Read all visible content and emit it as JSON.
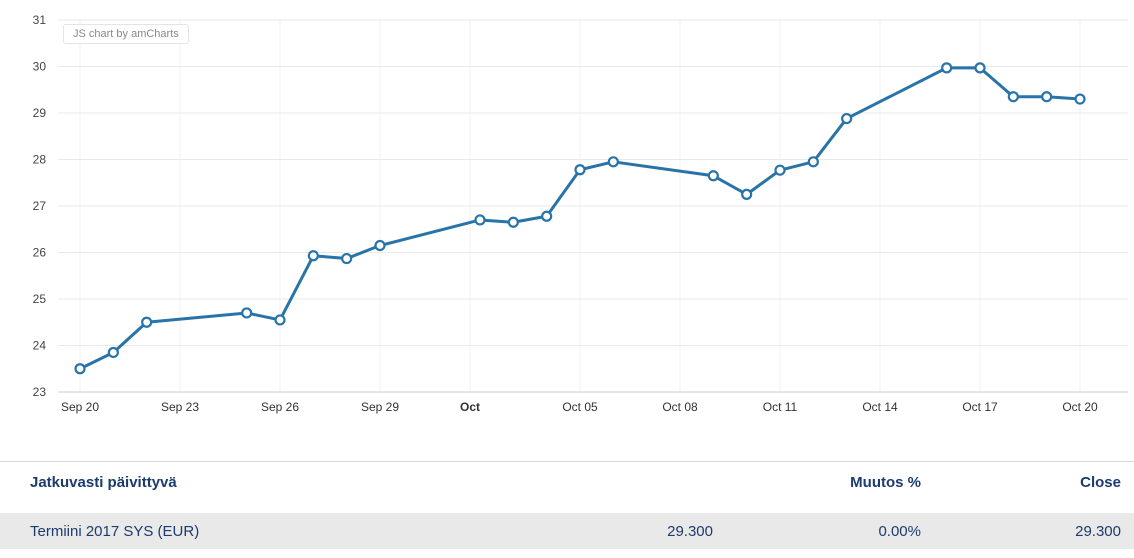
{
  "chart_data": {
    "type": "line",
    "watermark": "JS chart by amCharts",
    "title": "",
    "xlabel": "",
    "ylabel": "",
    "ylim": [
      23,
      31
    ],
    "y_ticks": [
      23,
      24,
      25,
      26,
      27,
      28,
      29,
      30,
      31
    ],
    "x_max_day": 30,
    "x_ticks": [
      {
        "label": "Sep 20",
        "day": 0,
        "bold": false
      },
      {
        "label": "Sep 23",
        "day": 3,
        "bold": false
      },
      {
        "label": "Sep 26",
        "day": 6,
        "bold": false
      },
      {
        "label": "Sep 29",
        "day": 9,
        "bold": false
      },
      {
        "label": "Oct",
        "day": 11.7,
        "bold": true
      },
      {
        "label": "Oct 05",
        "day": 15,
        "bold": false
      },
      {
        "label": "Oct 08",
        "day": 18,
        "bold": false
      },
      {
        "label": "Oct 11",
        "day": 21,
        "bold": false
      },
      {
        "label": "Oct 14",
        "day": 24,
        "bold": false
      },
      {
        "label": "Oct 17",
        "day": 27,
        "bold": false
      },
      {
        "label": "Oct 20",
        "day": 30,
        "bold": false
      }
    ],
    "series": [
      {
        "name": "Termiini 2017 SYS (EUR)",
        "points": [
          {
            "date": "Sep 20",
            "day": 0,
            "value": 23.5
          },
          {
            "date": "Sep 21",
            "day": 1,
            "value": 23.85
          },
          {
            "date": "Sep 22",
            "day": 2,
            "value": 24.5
          },
          {
            "date": "Sep 25",
            "day": 5,
            "value": 24.7
          },
          {
            "date": "Sep 26",
            "day": 6,
            "value": 24.55
          },
          {
            "date": "Sep 27",
            "day": 7,
            "value": 25.93
          },
          {
            "date": "Sep 28",
            "day": 8,
            "value": 25.87
          },
          {
            "date": "Sep 29",
            "day": 9,
            "value": 26.15
          },
          {
            "date": "Oct 02",
            "day": 12,
            "value": 26.7
          },
          {
            "date": "Oct 03",
            "day": 13,
            "value": 26.65
          },
          {
            "date": "Oct 04",
            "day": 14,
            "value": 26.78
          },
          {
            "date": "Oct 05",
            "day": 15,
            "value": 27.78
          },
          {
            "date": "Oct 06",
            "day": 16,
            "value": 27.95
          },
          {
            "date": "Oct 09",
            "day": 19,
            "value": 27.65
          },
          {
            "date": "Oct 10",
            "day": 20,
            "value": 27.25
          },
          {
            "date": "Oct 11",
            "day": 21,
            "value": 27.77
          },
          {
            "date": "Oct 12",
            "day": 22,
            "value": 27.95
          },
          {
            "date": "Oct 13",
            "day": 23,
            "value": 28.88
          },
          {
            "date": "Oct 16",
            "day": 26,
            "value": 29.97
          },
          {
            "date": "Oct 17",
            "day": 27,
            "value": 29.97
          },
          {
            "date": "Oct 18",
            "day": 28,
            "value": 29.35
          },
          {
            "date": "Oct 19",
            "day": 29,
            "value": 29.35
          },
          {
            "date": "Oct 20",
            "day": 30,
            "value": 29.3
          }
        ]
      }
    ],
    "colors": {
      "line": "#2874a8",
      "bullet_fill": "#ffffff",
      "grid": "#e9e9e9",
      "grid_vertical": "#f2f2f2",
      "axis_line": "#cccccc",
      "axis_label": "#444444"
    },
    "grid": true,
    "legend_position": "none"
  },
  "table": {
    "headers": {
      "instrument": "Jatkuvasti päivittyvä",
      "value": "",
      "change_pct": "Muutos %",
      "close": "Close"
    },
    "rows": [
      {
        "instrument": "Termiini 2017 SYS (EUR)",
        "value": "29.300",
        "change_pct": "0.00%",
        "close": "29.300"
      }
    ]
  }
}
